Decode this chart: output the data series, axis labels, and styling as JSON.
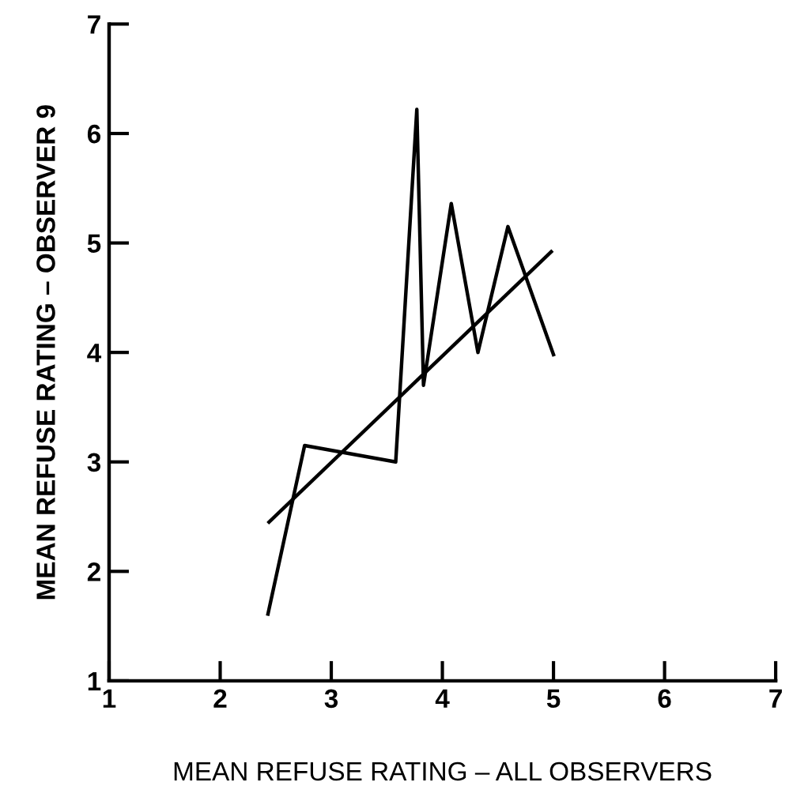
{
  "chart_data": {
    "type": "line",
    "xlabel": "MEAN REFUSE RATING – ALL OBSERVERS",
    "ylabel": "MEAN REFUSE RATING – OBSERVER 9",
    "xlim": [
      1,
      7
    ],
    "ylim": [
      1,
      7
    ],
    "xticks": [
      1,
      2,
      3,
      4,
      5,
      6,
      7
    ],
    "yticks": [
      1,
      2,
      3,
      4,
      5,
      6,
      7
    ],
    "grid": false,
    "marker": "none",
    "line_style": "solid",
    "series": [
      {
        "color": "#000000",
        "x": [
          2.43,
          2.76,
          3.58,
          3.77,
          3.83,
          4.08,
          4.32,
          4.59,
          5.0
        ],
        "values": [
          1.61,
          3.15,
          3.0,
          6.22,
          3.7,
          5.36,
          4.0,
          5.15,
          3.98
        ]
      },
      {
        "color": "#000000",
        "x": [
          2.44,
          4.98
        ],
        "values": [
          2.45,
          4.92
        ]
      }
    ]
  }
}
